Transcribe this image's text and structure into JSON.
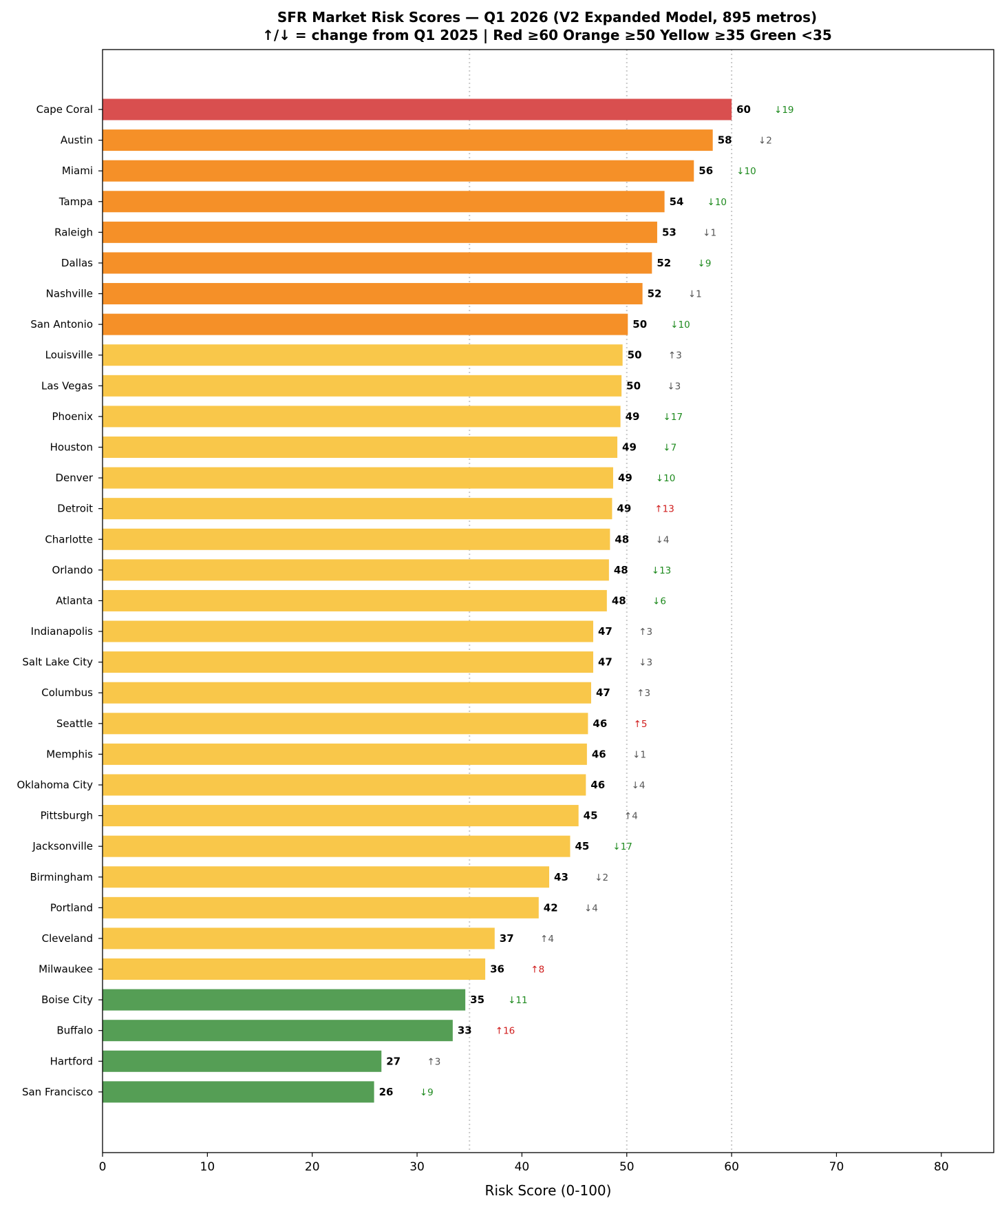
{
  "chart_data": {
    "type": "bar",
    "orientation": "horizontal",
    "title": "SFR Market Risk Scores — Q1 2026 (V2 Expanded Model, 895 metros)",
    "subtitle": "↑/↓ = change from Q1 2025  |  Red ≥60  Orange ≥50  Yellow ≥35  Green <35",
    "xlabel": "Risk Score (0-100)",
    "ylabel": "",
    "xlim": [
      0,
      85
    ],
    "xticks": [
      0,
      10,
      20,
      30,
      40,
      50,
      60,
      70,
      80
    ],
    "reference_lines": [
      35,
      50,
      60
    ],
    "colors": {
      "red": "#d94f4f",
      "orange": "#f59028",
      "yellow": "#f9c74a",
      "green": "#559e55",
      "change_down_major": "#1e8a1e",
      "change_up_major": "#d01c1c",
      "change_minor": "#555555",
      "refline": "#c8c8c8"
    },
    "categories": [
      "Cape Coral",
      "Austin",
      "Miami",
      "Tampa",
      "Raleigh",
      "Dallas",
      "Nashville",
      "San Antonio",
      "Louisville",
      "Las Vegas",
      "Phoenix",
      "Houston",
      "Denver",
      "Detroit",
      "Charlotte",
      "Orlando",
      "Atlanta",
      "Indianapolis",
      "Salt Lake City",
      "Columbus",
      "Seattle",
      "Memphis",
      "Oklahoma City",
      "Pittsburgh",
      "Jacksonville",
      "Birmingham",
      "Portland",
      "Cleveland",
      "Milwaukee",
      "Boise City",
      "Buffalo",
      "Hartford",
      "San Francisco"
    ],
    "values": [
      60.0,
      58.2,
      56.4,
      53.6,
      52.9,
      52.4,
      51.5,
      50.1,
      49.6,
      49.5,
      49.4,
      49.1,
      48.7,
      48.6,
      48.4,
      48.3,
      48.1,
      46.8,
      46.8,
      46.6,
      46.3,
      46.2,
      46.1,
      45.4,
      44.6,
      42.6,
      41.6,
      37.4,
      36.5,
      34.6,
      33.4,
      26.6,
      25.9
    ],
    "value_labels": [
      "60",
      "58",
      "56",
      "54",
      "53",
      "52",
      "52",
      "50",
      "50",
      "50",
      "49",
      "49",
      "49",
      "49",
      "48",
      "48",
      "48",
      "47",
      "47",
      "47",
      "46",
      "46",
      "46",
      "45",
      "45",
      "43",
      "42",
      "37",
      "36",
      "35",
      "33",
      "27",
      "26"
    ],
    "tiers": [
      "red",
      "orange",
      "orange",
      "orange",
      "orange",
      "orange",
      "orange",
      "orange",
      "yellow",
      "yellow",
      "yellow",
      "yellow",
      "yellow",
      "yellow",
      "yellow",
      "yellow",
      "yellow",
      "yellow",
      "yellow",
      "yellow",
      "yellow",
      "yellow",
      "yellow",
      "yellow",
      "yellow",
      "yellow",
      "yellow",
      "yellow",
      "yellow",
      "green",
      "green",
      "green",
      "green"
    ],
    "changes": [
      "↓19",
      "↓2",
      "↓10",
      "↓10",
      "↓1",
      "↓9",
      "↓1",
      "↓10",
      "↑3",
      "↓3",
      "↓17",
      "↓7",
      "↓10",
      "↑13",
      "↓4",
      "↓13",
      "↓6",
      "↑3",
      "↓3",
      "↑3",
      "↑5",
      "↓1",
      "↓4",
      "↑4",
      "↓17",
      "↓2",
      "↓4",
      "↑4",
      "↑8",
      "↓11",
      "↑16",
      "↑3",
      "↓9"
    ],
    "change_colors": [
      "down_major",
      "minor",
      "down_major",
      "down_major",
      "minor",
      "down_major",
      "minor",
      "down_major",
      "minor",
      "minor",
      "down_major",
      "down_major",
      "down_major",
      "up_major",
      "minor",
      "down_major",
      "down_major",
      "minor",
      "minor",
      "minor",
      "up_major",
      "minor",
      "minor",
      "minor",
      "down_major",
      "minor",
      "minor",
      "minor",
      "up_major",
      "down_major",
      "up_major",
      "minor",
      "down_major"
    ]
  }
}
